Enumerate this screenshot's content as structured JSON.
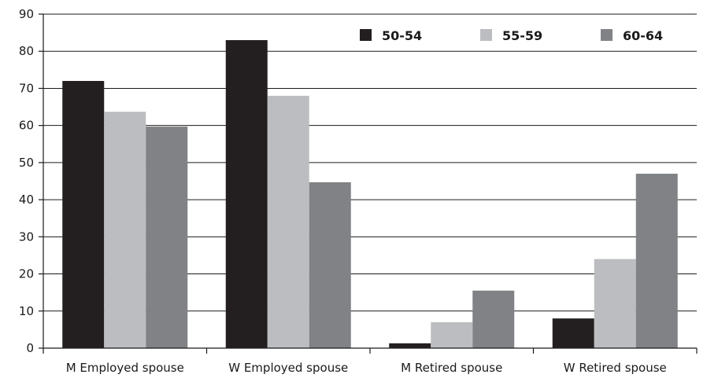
{
  "chart_data": {
    "type": "bar",
    "title": "",
    "xlabel": "",
    "ylabel": "",
    "categories": [
      "M Employed spouse",
      "W Employed spouse",
      "M Retired spouse",
      "W Retired spouse"
    ],
    "series": [
      {
        "name": "50-54",
        "color": "#231f20",
        "values": [
          72,
          83,
          1.3,
          8
        ]
      },
      {
        "name": "55-59",
        "color": "#bcbdc0",
        "values": [
          63.7,
          68,
          7,
          24
        ]
      },
      {
        "name": "60-64",
        "color": "#808285",
        "values": [
          59.7,
          44.7,
          15.5,
          47
        ]
      }
    ],
    "ylim": [
      0,
      90
    ],
    "yticks": [
      0,
      10,
      20,
      30,
      40,
      50,
      60,
      70,
      80,
      90
    ],
    "grid": true,
    "legend_position": "top-right"
  }
}
